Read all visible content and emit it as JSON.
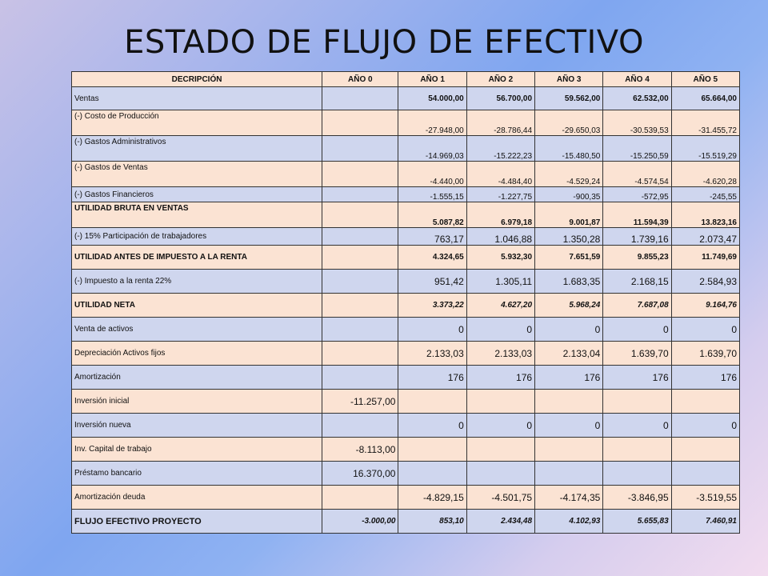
{
  "title": "ESTADO DE FLUJO DE EFECTIVO",
  "headers": [
    "DECRIPCIÓN",
    "AÑO 0",
    "AÑO 1",
    "AÑO 2",
    "AÑO 3",
    "AÑO 4",
    "AÑO 5"
  ],
  "rows": [
    [
      "Ventas",
      "",
      "54.000,00",
      "56.700,00",
      "59.562,00",
      "62.532,00",
      "65.664,00"
    ],
    [
      "(-) Costo de Producción",
      "",
      "-27.948,00",
      "-28.786,44",
      "-29.650,03",
      "-30.539,53",
      "-31.455,72"
    ],
    [
      "(-) Gastos Administrativos",
      "",
      "-14.969,03",
      "-15.222,23",
      "-15.480,50",
      "-15.250,59",
      "-15.519,29"
    ],
    [
      "(-) Gastos de Ventas",
      "",
      "-4.440,00",
      "-4.484,40",
      "-4.529,24",
      "-4.574,54",
      "-4.620,28"
    ],
    [
      "(-) Gastos Financieros",
      "",
      "-1.555,15",
      "-1.227,75",
      "-900,35",
      "-572,95",
      "-245,55"
    ],
    [
      "UTILIDAD BRUTA EN VENTAS",
      "",
      "5.087,82",
      "6.979,18",
      "9.001,87",
      "11.594,39",
      "13.823,16"
    ],
    [
      "(-) 15% Participación de trabajadores",
      "",
      "763,17",
      "1.046,88",
      "1.350,28",
      "1.739,16",
      "2.073,47"
    ],
    [
      "UTILIDAD ANTES DE IMPUESTO A LA RENTA",
      "",
      "4.324,65",
      "5.932,30",
      "7.651,59",
      "9.855,23",
      "11.749,69"
    ],
    [
      "(-) Impuesto a la renta 22%",
      "",
      "951,42",
      "1.305,11",
      "1.683,35",
      "2.168,15",
      "2.584,93"
    ],
    [
      "UTILIDAD NETA",
      "",
      "3.373,22",
      "4.627,20",
      "5.968,24",
      "7.687,08",
      "9.164,76"
    ],
    [
      "Venta de activos",
      "",
      "0",
      "0",
      "0",
      "0",
      "0"
    ],
    [
      "Depreciación Activos fijos",
      "",
      "2.133,03",
      "2.133,03",
      "2.133,04",
      "1.639,70",
      "1.639,70"
    ],
    [
      "Amortización",
      "",
      "176",
      "176",
      "176",
      "176",
      "176"
    ],
    [
      "Inversión inicial",
      "-11.257,00",
      "",
      "",
      "",
      "",
      ""
    ],
    [
      "Inversión nueva",
      "",
      "0",
      "0",
      "0",
      "0",
      "0"
    ],
    [
      "Inv. Capital de trabajo",
      "-8.113,00",
      "",
      "",
      "",
      "",
      ""
    ],
    [
      "Préstamo bancario",
      "16.370,00",
      "",
      "",
      "",
      "",
      ""
    ],
    [
      "Amortización deuda",
      "",
      "-4.829,15",
      "-4.501,75",
      "-4.174,35",
      "-3.846,95",
      "-3.519,55"
    ],
    [
      "FLUJO EFECTIVO PROYECTO",
      "-3.000,00",
      "853,10",
      "2.434,48",
      "4.102,93",
      "5.655,83",
      "7.460,91"
    ]
  ]
}
